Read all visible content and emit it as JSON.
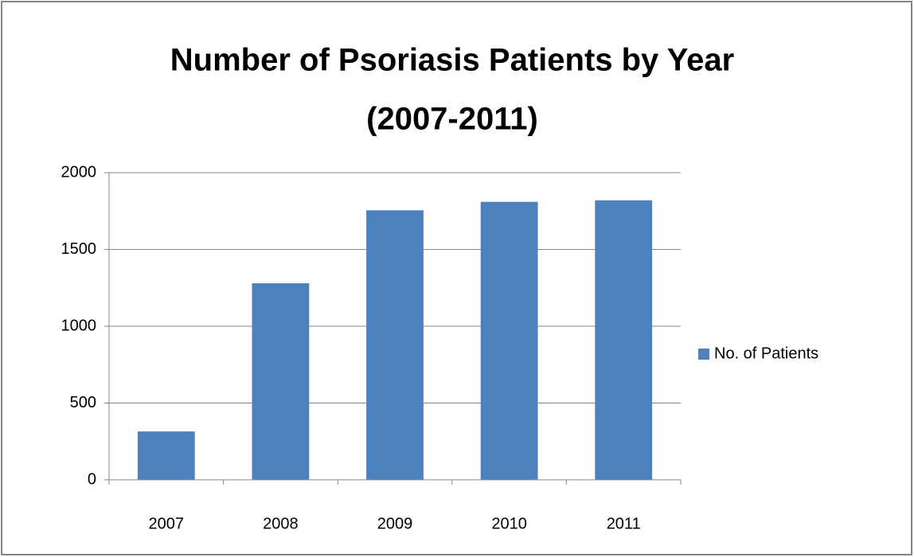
{
  "chart_data": {
    "type": "bar",
    "title": [
      "Number of Psoriasis Patients by Year",
      "(2007-2011)"
    ],
    "categories": [
      "2007",
      "2008",
      "2009",
      "2010",
      "2011"
    ],
    "series": [
      {
        "name": "No. of Patients",
        "color": "#4f81bd",
        "values": [
          315,
          1280,
          1755,
          1810,
          1820
        ]
      }
    ],
    "ylim": [
      0,
      2000
    ],
    "yticks": [
      0,
      500,
      1000,
      1500,
      2000
    ],
    "grid": true,
    "legend": "right"
  }
}
